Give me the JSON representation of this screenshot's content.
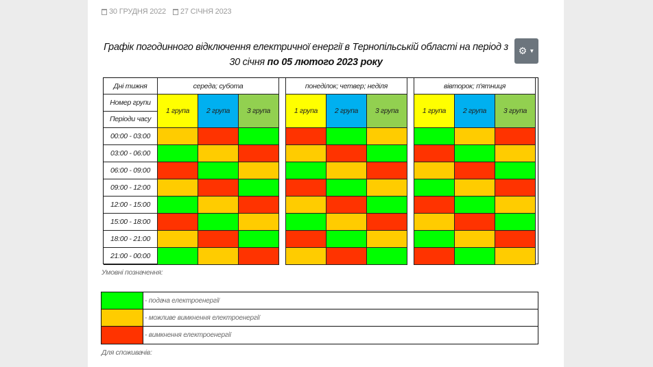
{
  "dates": [
    "30 ГРУДНЯ 2022",
    "27 СІЧНЯ 2023"
  ],
  "title_normal": "Графік погодинного відключення електричної енергії  в Тернопільській області на період з 30 січня ",
  "title_bold": "по 05 лютого 2023 року",
  "header": {
    "days_label": "Дні тижня",
    "group_label": "Номер групи",
    "period_label": "Періоди часу",
    "blocks": [
      "середа; субота",
      "понеділок; четвер; неділя",
      "вівторок; п'ятниця"
    ],
    "groups": [
      "1 група",
      "2 група",
      "3 група"
    ]
  },
  "periods": [
    "00:00 - 03:00",
    "03:00 - 06:00",
    "06:00 - 09:00",
    "09:00 - 12:00",
    "12:00 - 15:00",
    "15:00 - 18:00",
    "18:00 - 21:00",
    "21:00 - 00:00"
  ],
  "status_matrix": [
    [
      "yellow",
      "red",
      "green",
      "red",
      "green",
      "yellow",
      "green",
      "yellow",
      "red"
    ],
    [
      "green",
      "yellow",
      "red",
      "yellow",
      "red",
      "green",
      "red",
      "green",
      "yellow"
    ],
    [
      "red",
      "green",
      "yellow",
      "green",
      "yellow",
      "red",
      "yellow",
      "red",
      "green"
    ],
    [
      "yellow",
      "red",
      "green",
      "red",
      "green",
      "yellow",
      "green",
      "yellow",
      "red"
    ],
    [
      "green",
      "yellow",
      "red",
      "yellow",
      "red",
      "green",
      "red",
      "green",
      "yellow"
    ],
    [
      "red",
      "green",
      "yellow",
      "green",
      "yellow",
      "red",
      "yellow",
      "red",
      "green"
    ],
    [
      "yellow",
      "red",
      "green",
      "red",
      "green",
      "yellow",
      "green",
      "yellow",
      "red"
    ],
    [
      "green",
      "yellow",
      "red",
      "yellow",
      "red",
      "green",
      "red",
      "green",
      "yellow"
    ]
  ],
  "legend_title": "Умовні позначення:",
  "legend": [
    {
      "color": "green",
      "text": "- подача електроенергії"
    },
    {
      "color": "yellow",
      "text": "- можливе вимкнення електроенергії"
    },
    {
      "color": "red",
      "text": "- вимкнення електроенергії"
    }
  ],
  "consumers_label": "Для споживачів:",
  "icons": {
    "date": "calendar-icon",
    "settings": "gear-icon",
    "dropdown": "caret-down-icon"
  }
}
